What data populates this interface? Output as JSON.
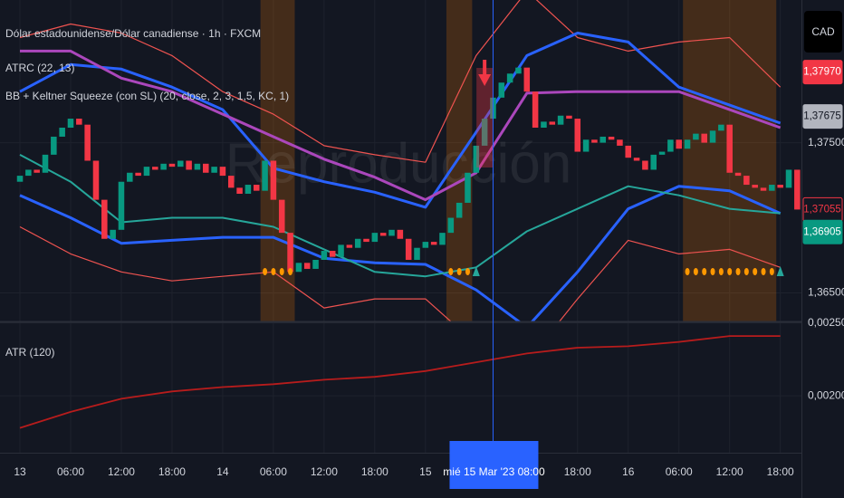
{
  "header": {
    "symbol": "Dólar estadounidense/Dólar canadiense · 1h · FXCM",
    "indicator_atrc": "ATRC (22, 13)",
    "indicator_bb": "BB + Keltner Squeeze (con SL) (20, close, 2, 3, 1,5, KC, 1)",
    "watermark": "Reproducción",
    "currency": "CAD"
  },
  "chart_data": [
    {
      "type": "candlestick",
      "x": [
        0,
        1,
        2,
        3,
        4,
        5,
        6,
        7,
        8,
        9,
        10,
        11,
        12,
        13,
        14,
        15,
        16,
        17,
        18,
        19,
        20,
        21,
        22,
        23,
        24,
        25,
        26,
        27,
        28,
        29,
        30,
        31,
        32,
        33,
        34,
        35,
        36,
        37,
        38,
        39,
        40,
        41,
        42,
        43,
        44,
        45,
        46,
        47,
        48,
        49,
        50,
        51,
        52,
        53,
        54,
        55,
        56,
        57,
        58,
        59,
        60,
        61,
        62,
        63,
        64,
        65,
        66,
        67,
        68,
        69,
        70,
        71,
        72,
        73,
        74,
        75,
        76,
        77,
        78,
        79,
        80,
        81,
        82,
        83,
        84,
        85,
        86,
        87,
        88,
        89,
        90,
        91,
        92
      ],
      "open": [
        1.3724,
        1.3728,
        1.3732,
        1.373,
        1.3742,
        1.3754,
        1.376,
        1.3766,
        1.3762,
        1.3738,
        1.3712,
        1.3686,
        1.3692,
        1.3724,
        1.373,
        1.3728,
        1.3734,
        1.3732,
        1.3736,
        1.3734,
        1.3738,
        1.3732,
        1.3736,
        1.373,
        1.3734,
        1.3728,
        1.372,
        1.3716,
        1.3722,
        1.3718,
        1.3738,
        1.3712,
        1.369,
        1.3664,
        1.367,
        1.3666,
        1.3672,
        1.3678,
        1.3674,
        1.3682,
        1.368,
        1.3686,
        1.3684,
        1.369,
        1.3688,
        1.3692,
        1.3686,
        1.3672,
        1.368,
        1.3684,
        1.3682,
        1.369,
        1.37,
        1.371,
        1.373,
        1.3748,
        1.3766,
        1.378,
        1.379,
        1.3796,
        1.38,
        1.3784,
        1.376,
        1.3764,
        1.3762,
        1.3768,
        1.3766,
        1.3744,
        1.3752,
        1.375,
        1.3754,
        1.3752,
        1.3748,
        1.374,
        1.3738,
        1.3732,
        1.3742,
        1.3744,
        1.3752,
        1.3746,
        1.3752,
        1.3756,
        1.375,
        1.3758,
        1.3762,
        1.373,
        1.3728,
        1.3722,
        1.372,
        1.3718,
        1.3722,
        1.372,
        1.3732
      ],
      "close": [
        1.3728,
        1.3732,
        1.373,
        1.3742,
        1.3754,
        1.376,
        1.3766,
        1.3762,
        1.3738,
        1.3712,
        1.3686,
        1.3692,
        1.3724,
        1.373,
        1.3728,
        1.3734,
        1.3732,
        1.3736,
        1.3734,
        1.3738,
        1.3732,
        1.3736,
        1.373,
        1.3734,
        1.3728,
        1.372,
        1.3716,
        1.3722,
        1.3718,
        1.3738,
        1.3712,
        1.369,
        1.3664,
        1.367,
        1.3666,
        1.3672,
        1.3678,
        1.3674,
        1.3682,
        1.368,
        1.3686,
        1.3684,
        1.369,
        1.3688,
        1.3692,
        1.3686,
        1.3672,
        1.368,
        1.3684,
        1.3682,
        1.369,
        1.37,
        1.371,
        1.373,
        1.3748,
        1.3766,
        1.378,
        1.379,
        1.3796,
        1.38,
        1.3784,
        1.376,
        1.3764,
        1.3762,
        1.3768,
        1.3766,
        1.3744,
        1.3752,
        1.375,
        1.3754,
        1.3752,
        1.3748,
        1.374,
        1.3738,
        1.3732,
        1.3742,
        1.3744,
        1.3752,
        1.3746,
        1.3752,
        1.3756,
        1.375,
        1.3758,
        1.3762,
        1.373,
        1.3728,
        1.3722,
        1.372,
        1.3718,
        1.3722,
        1.372,
        1.3732,
        1.37055
      ],
      "up_color": "#089981",
      "down_color": "#f23645",
      "overlay_x": [
        0,
        6,
        12,
        18,
        24,
        30,
        36,
        42,
        48,
        54,
        60,
        66,
        72,
        78,
        84,
        90
      ],
      "overlays": [
        {
          "color": "#ef5350",
          "width": 1.2,
          "values": [
            1.382,
            1.3829,
            1.3823,
            1.3808,
            1.3784,
            1.3769,
            1.3748,
            1.3742,
            1.3737,
            1.3808,
            1.3851,
            1.382,
            1.3811,
            1.3817,
            1.382,
            1.3787
          ]
        },
        {
          "color": "#ef5350",
          "width": 1.2,
          "values": [
            1.3694,
            1.3676,
            1.3664,
            1.3658,
            1.3661,
            1.3664,
            1.364,
            1.3646,
            1.3646,
            1.3616,
            1.3604,
            1.3646,
            1.3685,
            1.3676,
            1.3679,
            1.3667
          ]
        },
        {
          "color": "#2962ff",
          "width": 3,
          "values": [
            1.3784,
            1.3802,
            1.3799,
            1.3787,
            1.3772,
            1.3733,
            1.3724,
            1.3717,
            1.3707,
            1.3757,
            1.3808,
            1.3823,
            1.3817,
            1.3787,
            1.3775,
            1.3763
          ]
        },
        {
          "color": "#2962ff",
          "width": 3,
          "values": [
            1.3715,
            1.37,
            1.3683,
            1.3685,
            1.3687,
            1.3687,
            1.3673,
            1.367,
            1.3669,
            1.3652,
            1.3627,
            1.3664,
            1.3706,
            1.3721,
            1.3718,
            1.3703
          ]
        },
        {
          "color": "#ab47bc",
          "width": 3,
          "values": [
            1.3811,
            1.3811,
            1.3793,
            1.3784,
            1.3769,
            1.3754,
            1.3739,
            1.3727,
            1.3712,
            1.373,
            1.3783,
            1.3784,
            1.3784,
            1.3784,
            1.3772,
            1.376
          ]
        },
        {
          "color": "#26a69a",
          "width": 2,
          "values": [
            1.3742,
            1.3724,
            1.3697,
            1.37,
            1.37,
            1.3694,
            1.3679,
            1.3664,
            1.3661,
            1.3667,
            1.3691,
            1.3706,
            1.3721,
            1.3715,
            1.3706,
            1.3703
          ]
        }
      ],
      "squeeze_zones": [
        [
          29,
          32
        ],
        [
          51,
          53
        ],
        [
          79,
          89
        ]
      ],
      "breakout_x": [
        54,
        90
      ],
      "sell_signal_x": 55,
      "xlim": [
        -2.36,
        92.5
      ],
      "ylim": [
        1.3631,
        1.3845
      ],
      "xticks": [
        {
          "value": 0,
          "label": "13"
        },
        {
          "value": 6,
          "label": "06:00"
        },
        {
          "value": 12,
          "label": "12:00"
        },
        {
          "value": 18,
          "label": "18:00"
        },
        {
          "value": 24,
          "label": "14"
        },
        {
          "value": 30,
          "label": "06:00"
        },
        {
          "value": 36,
          "label": "12:00"
        },
        {
          "value": 42,
          "label": "18:00"
        },
        {
          "value": 48,
          "label": "15"
        },
        {
          "value": 66,
          "label": "18:00"
        },
        {
          "value": 72,
          "label": "16"
        },
        {
          "value": 78,
          "label": "06:00"
        },
        {
          "value": 84,
          "label": "12:00"
        },
        {
          "value": 90,
          "label": "18:00"
        }
      ],
      "yticks": [
        {
          "value": 1.365,
          "label": "1,36500"
        },
        {
          "value": 1.375,
          "label": "1,37500"
        }
      ],
      "price_labels": [
        {
          "value": 1.3797,
          "label": "1,37970",
          "color": "#f23645",
          "text_color": "#ffffff"
        },
        {
          "value": 1.37675,
          "label": "1,37675",
          "color": "#b2b5be",
          "text_color": "#131722"
        },
        {
          "value": 1.37055,
          "label": "1,37055",
          "color": "#131722",
          "text_color": "#f23645"
        },
        {
          "value": 1.36905,
          "label": "1,36905",
          "color": "#089981",
          "text_color": "#ffffff"
        }
      ],
      "crosshair": {
        "x": 56,
        "label": "mié 15 Mar '23  08:00"
      }
    },
    {
      "type": "line",
      "title": "ATR (120)",
      "color": "#b71c1c",
      "x": [
        0,
        6,
        12,
        18,
        24,
        30,
        36,
        42,
        48,
        54,
        60,
        66,
        72,
        78,
        84,
        90
      ],
      "values": [
        0.00178,
        0.00189,
        0.00198,
        0.00203,
        0.00206,
        0.00208,
        0.00211,
        0.00213,
        0.00217,
        0.00223,
        0.00229,
        0.00233,
        0.00234,
        0.00237,
        0.00241,
        0.00241
      ],
      "ylim": [
        0.00161,
        0.00251
      ],
      "yticks": [
        {
          "value": 0.0025,
          "label": "0,00250"
        },
        {
          "value": 0.002,
          "label": "0,00200"
        }
      ]
    }
  ]
}
